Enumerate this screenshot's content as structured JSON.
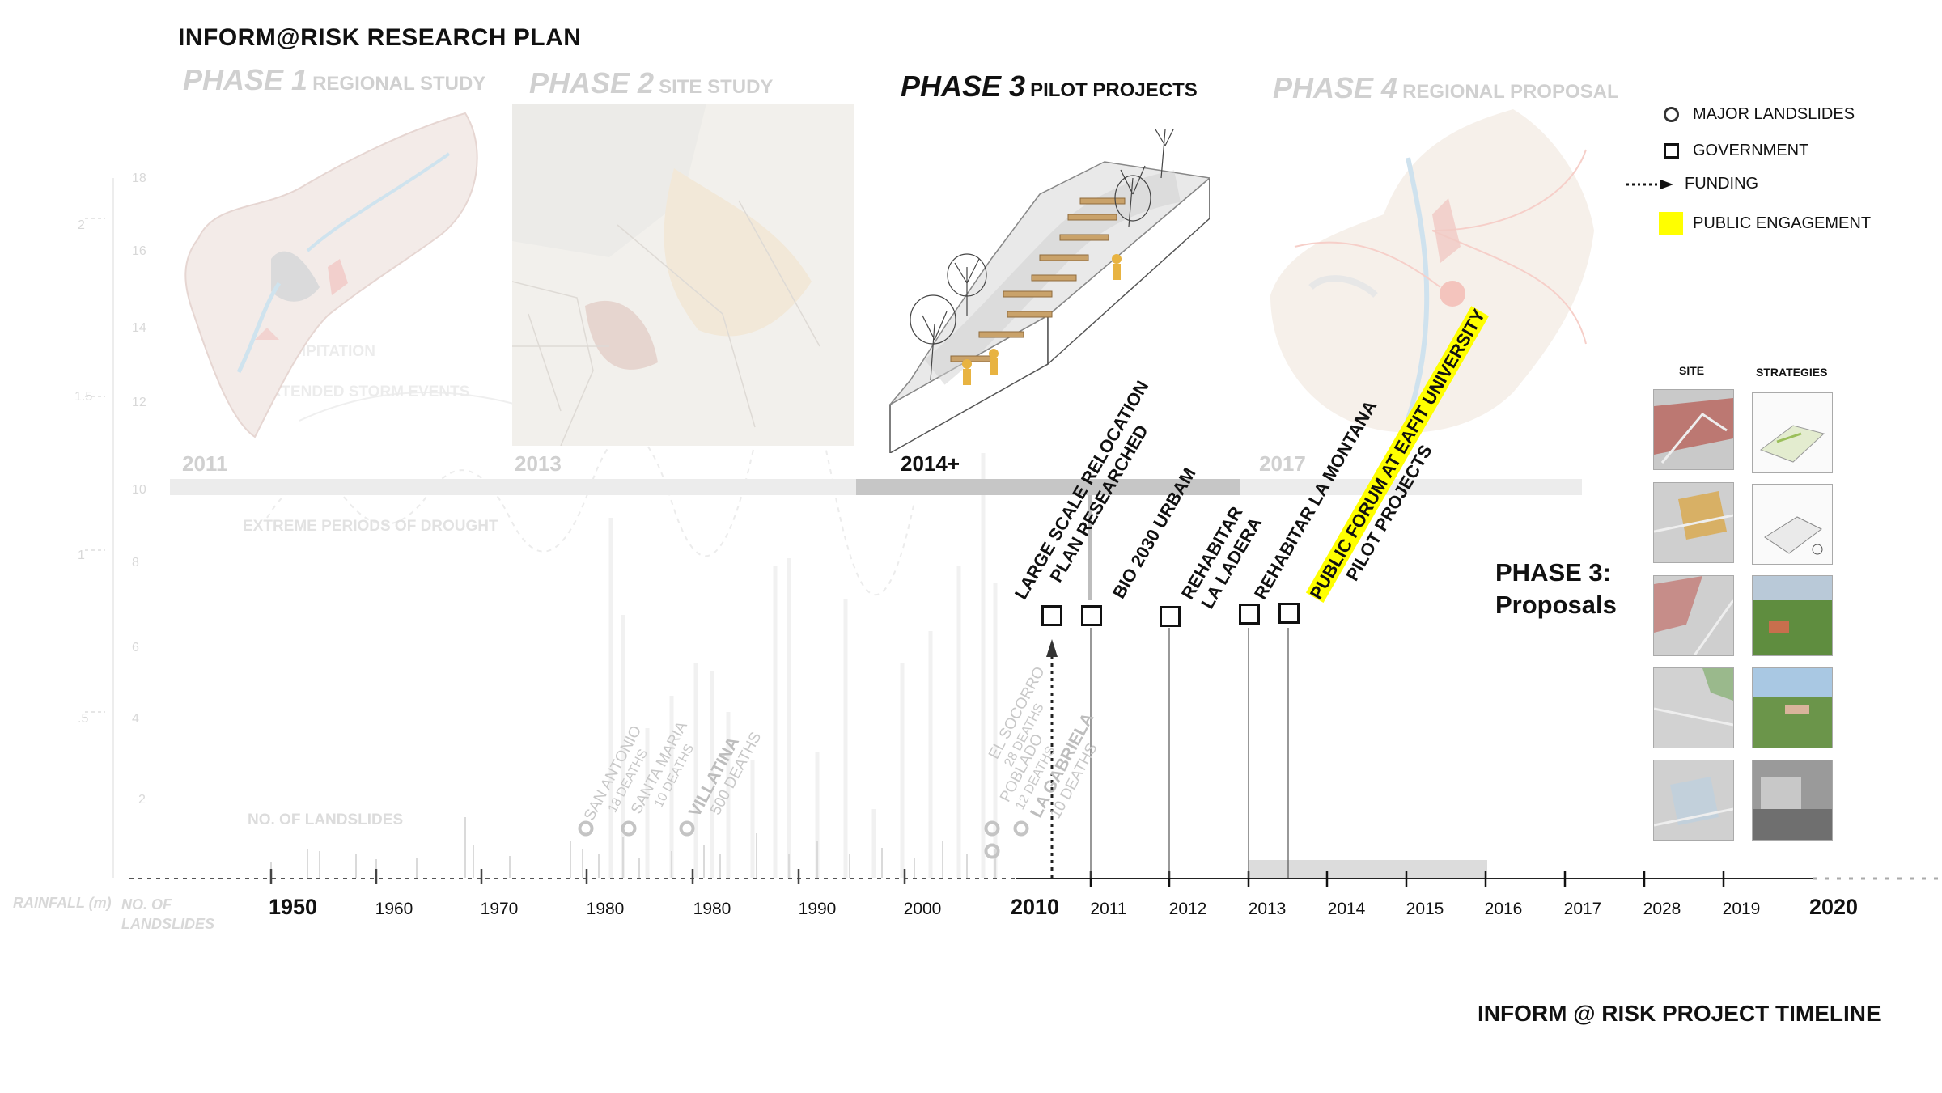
{
  "title": "INFORM@RISK RESEARCH PLAN",
  "bottom_title": "INFORM @ RISK PROJECT TIMELINE",
  "phases": [
    {
      "label": "PHASE 1",
      "sub": "REGIONAL STUDY",
      "year": "2011"
    },
    {
      "label": "PHASE 2",
      "sub": "SITE STUDY",
      "year": "2013"
    },
    {
      "label": "PHASE 3",
      "sub": "PILOT PROJECTS",
      "year": "2014+"
    },
    {
      "label": "PHASE 4",
      "sub": "REGIONAL PROPOSAL",
      "year": "2017"
    }
  ],
  "legend": [
    {
      "label": "MAJOR LANDSLIDES",
      "icon": "circle-icon"
    },
    {
      "label": "GOVERNMENT",
      "icon": "square-icon"
    },
    {
      "label": "FUNDING",
      "icon": "dotted-arrow-icon"
    },
    {
      "label": "PUBLIC ENGAGEMENT",
      "icon": "yellow-swatch",
      "color": "#ffff00"
    }
  ],
  "proposals": {
    "line1": "PHASE 3:",
    "line2": "Proposals",
    "col_site": "SITE",
    "col_strategies": "STRATEGIES"
  },
  "events": [
    {
      "line1": "LARGE SCALE RELOCATION",
      "line2": "PLAN RESEARCHED"
    },
    {
      "line1": "BIO 2030 URBAM",
      "line2": ""
    },
    {
      "line1": "REHABITAR",
      "line2": "LA LADERA"
    },
    {
      "line1": "REHABITAR LA MONTANA",
      "line2": ""
    },
    {
      "line1": "PUBLIC FORUM AT EAFIT UNIVERSITY",
      "line2": "PILOT PROJECTS",
      "highlight": true
    }
  ],
  "axis": {
    "years_left": [
      "1950",
      "1960",
      "1970",
      "1980",
      "1980",
      "1990",
      "2000",
      "2010"
    ],
    "years_right": [
      "2011",
      "2012",
      "2013",
      "2014",
      "2015",
      "2016",
      "2017",
      "2028",
      "2019",
      "2020"
    ],
    "caption_rainfall": "RAINFALL (m)",
    "caption_landslides_1": "NO. OF",
    "caption_landslides_2": "LANDSLIDES"
  },
  "background_chart": {
    "left_ticks": [
      "2",
      "1.5",
      "1",
      ".5"
    ],
    "right_ticks": [
      "18",
      "16",
      "14",
      "12",
      "10",
      "8",
      "6",
      "4",
      "2"
    ],
    "labels": [
      "PRECIPITATION",
      "EXTENDED STORM EVENTS",
      "EXTREME PERIODS OF DROUGHT",
      "NO. OF LANDSLIDES"
    ]
  },
  "landslides": [
    {
      "name": "SAN ANTONIO",
      "deaths": "18 DEATHS"
    },
    {
      "name": "SANTA MARIA",
      "deaths": "10 DEATHS"
    },
    {
      "name": "VILLATINA",
      "deaths": "500 DEATHS",
      "bold": true
    },
    {
      "name": "EL SOCORRO",
      "deaths": "28 DEATHS"
    },
    {
      "name": "POBLADO",
      "deaths": "12 DEATHS"
    },
    {
      "name": "LA GABRIELA",
      "deaths": "10 DEATHS",
      "bold": true
    }
  ]
}
